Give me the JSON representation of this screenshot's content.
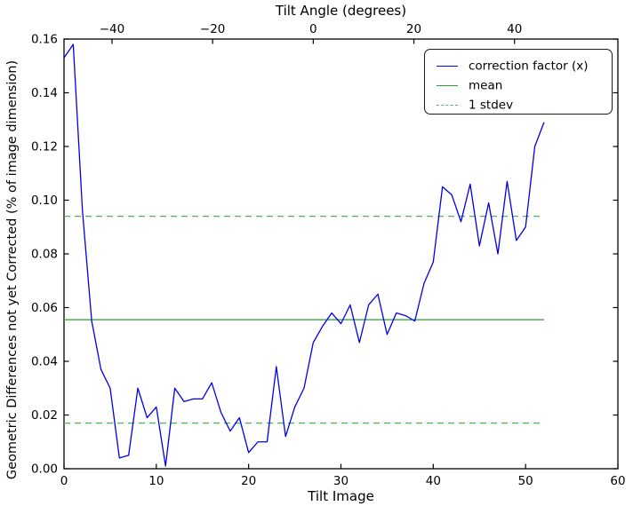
{
  "figure": {
    "background": "#ffffff",
    "frame_color": "#000000"
  },
  "chart_data": {
    "type": "line",
    "title": "",
    "top_xlabel": "Tilt Angle (degrees)",
    "xlabel": "Tilt Image",
    "ylabel": "Geometric Differences not yet Corrected (% of image dimension)",
    "xlim": [
      0,
      60
    ],
    "ylim": [
      0,
      0.16
    ],
    "grid": false,
    "x_ticks": [
      0,
      10,
      20,
      30,
      40,
      50,
      60
    ],
    "y_ticks": [
      0,
      0.02,
      0.04,
      0.06,
      0.08,
      0.1,
      0.12,
      0.14,
      0.16
    ],
    "y_tick_labels": [
      "0.00",
      "0.02",
      "0.04",
      "0.06",
      "0.08",
      "0.10",
      "0.12",
      "0.14",
      "0.16"
    ],
    "top_x_ticks": [
      {
        "label": "−40",
        "pos": 5.2
      },
      {
        "label": "−20",
        "pos": 16.1
      },
      {
        "label": "0",
        "pos": 27.0
      },
      {
        "label": "20",
        "pos": 37.9
      },
      {
        "label": "40",
        "pos": 48.8
      }
    ],
    "series": [
      {
        "name": "correction factor (x)",
        "type": "line",
        "color": "#0000ee",
        "style": "solid",
        "x_start": 0,
        "x_step": 1,
        "values": [
          0.153,
          0.158,
          0.096,
          0.055,
          0.037,
          0.03,
          0.004,
          0.005,
          0.03,
          0.019,
          0.023,
          0.001,
          0.03,
          0.025,
          0.026,
          0.026,
          0.032,
          0.021,
          0.014,
          0.019,
          0.006,
          0.01,
          0.01,
          0.038,
          0.012,
          0.023,
          0.03,
          0.047,
          0.053,
          0.058,
          0.054,
          0.061,
          0.047,
          0.061,
          0.065,
          0.05,
          0.058,
          0.057,
          0.055,
          0.069,
          0.077,
          0.105,
          0.102,
          0.092,
          0.106,
          0.083,
          0.099,
          0.08,
          0.107,
          0.085,
          0.09,
          0.12,
          0.129
        ]
      },
      {
        "name": "mean",
        "type": "hline",
        "color": "#2e9e2e",
        "style": "solid",
        "value": 0.0555,
        "x_range": [
          0,
          52
        ]
      },
      {
        "name": "1 stdev upper",
        "type": "hline",
        "color": "#55b455",
        "style": "dashed",
        "value": 0.094,
        "x_range": [
          0,
          52
        ]
      },
      {
        "name": "1 stdev lower",
        "type": "hline",
        "color": "#55b455",
        "style": "dashed",
        "value": 0.017,
        "x_range": [
          0,
          52
        ]
      }
    ],
    "stats": {
      "mean": 0.0555,
      "stdev": 0.0385
    },
    "legend": {
      "position": "upper right",
      "entries": [
        {
          "label": "correction factor (x)",
          "color": "#0000ee",
          "style": "solid"
        },
        {
          "label": "mean",
          "color": "#2e9e2e",
          "style": "solid"
        },
        {
          "label": "1 stdev",
          "color": "#55b455",
          "style": "dashed"
        }
      ]
    }
  }
}
